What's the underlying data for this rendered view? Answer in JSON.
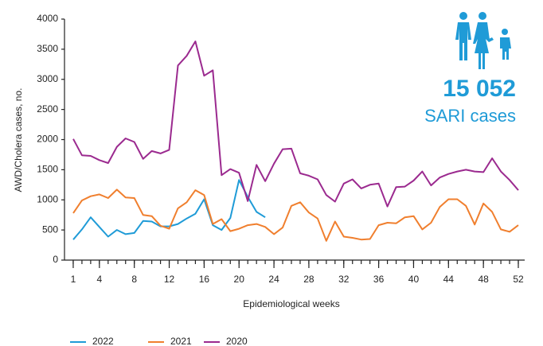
{
  "chart_data": {
    "type": "line",
    "stat": "15 052",
    "stat_label": "SARI cases",
    "xlabel": "Epidemiological weeks",
    "ylabel": "AWD/Cholera cases, no.",
    "x": [
      1,
      2,
      3,
      4,
      5,
      6,
      7,
      8,
      9,
      10,
      11,
      12,
      13,
      14,
      15,
      16,
      17,
      18,
      19,
      20,
      21,
      22,
      23,
      24,
      25,
      26,
      27,
      28,
      29,
      30,
      31,
      32,
      33,
      34,
      35,
      36,
      37,
      38,
      39,
      40,
      41,
      42,
      43,
      44,
      45,
      46,
      47,
      48,
      49,
      50,
      51,
      52
    ],
    "series": [
      {
        "name": "2022",
        "color": "#1f9bd7",
        "values": [
          340,
          510,
          710,
          550,
          390,
          500,
          430,
          450,
          650,
          640,
          560,
          560,
          600,
          690,
          770,
          1010,
          580,
          500,
          700,
          1330,
          1050,
          800,
          710,
          null,
          null,
          null,
          null,
          null,
          null,
          null,
          null,
          null,
          null,
          null,
          null,
          null,
          null,
          null,
          null,
          null,
          null,
          null,
          null,
          null,
          null,
          null,
          null,
          null,
          null,
          null,
          null,
          null
        ]
      },
      {
        "name": "2021",
        "color": "#f07f2e",
        "values": [
          780,
          990,
          1060,
          1090,
          1030,
          1170,
          1040,
          1030,
          750,
          730,
          570,
          520,
          860,
          960,
          1160,
          1080,
          600,
          680,
          480,
          520,
          580,
          600,
          550,
          430,
          540,
          900,
          960,
          790,
          690,
          320,
          640,
          390,
          370,
          340,
          350,
          580,
          620,
          610,
          710,
          730,
          510,
          620,
          880,
          1010,
          1010,
          900,
          590,
          940,
          800,
          510,
          470,
          580
        ]
      },
      {
        "name": "2020",
        "color": "#9b2a8f",
        "values": [
          2010,
          1740,
          1730,
          1660,
          1610,
          1880,
          2020,
          1960,
          1680,
          1810,
          1770,
          1830,
          3230,
          3390,
          3630,
          3060,
          3150,
          1410,
          1510,
          1450,
          980,
          1580,
          1310,
          1600,
          1840,
          1850,
          1440,
          1400,
          1340,
          1080,
          970,
          1270,
          1340,
          1190,
          1250,
          1270,
          890,
          1210,
          1220,
          1320,
          1470,
          1240,
          1370,
          1430,
          1470,
          1500,
          1470,
          1460,
          1690,
          1470,
          1330,
          1160
        ]
      }
    ],
    "xlim": [
      0,
      52
    ],
    "xticks": [
      1,
      4,
      8,
      12,
      16,
      20,
      24,
      28,
      32,
      36,
      40,
      44,
      48,
      52
    ],
    "ylim": [
      0,
      4000
    ],
    "yticks": [
      0,
      500,
      1000,
      1500,
      2000,
      2500,
      3000,
      3500,
      4000
    ],
    "grid": false,
    "legend": "bottom"
  }
}
